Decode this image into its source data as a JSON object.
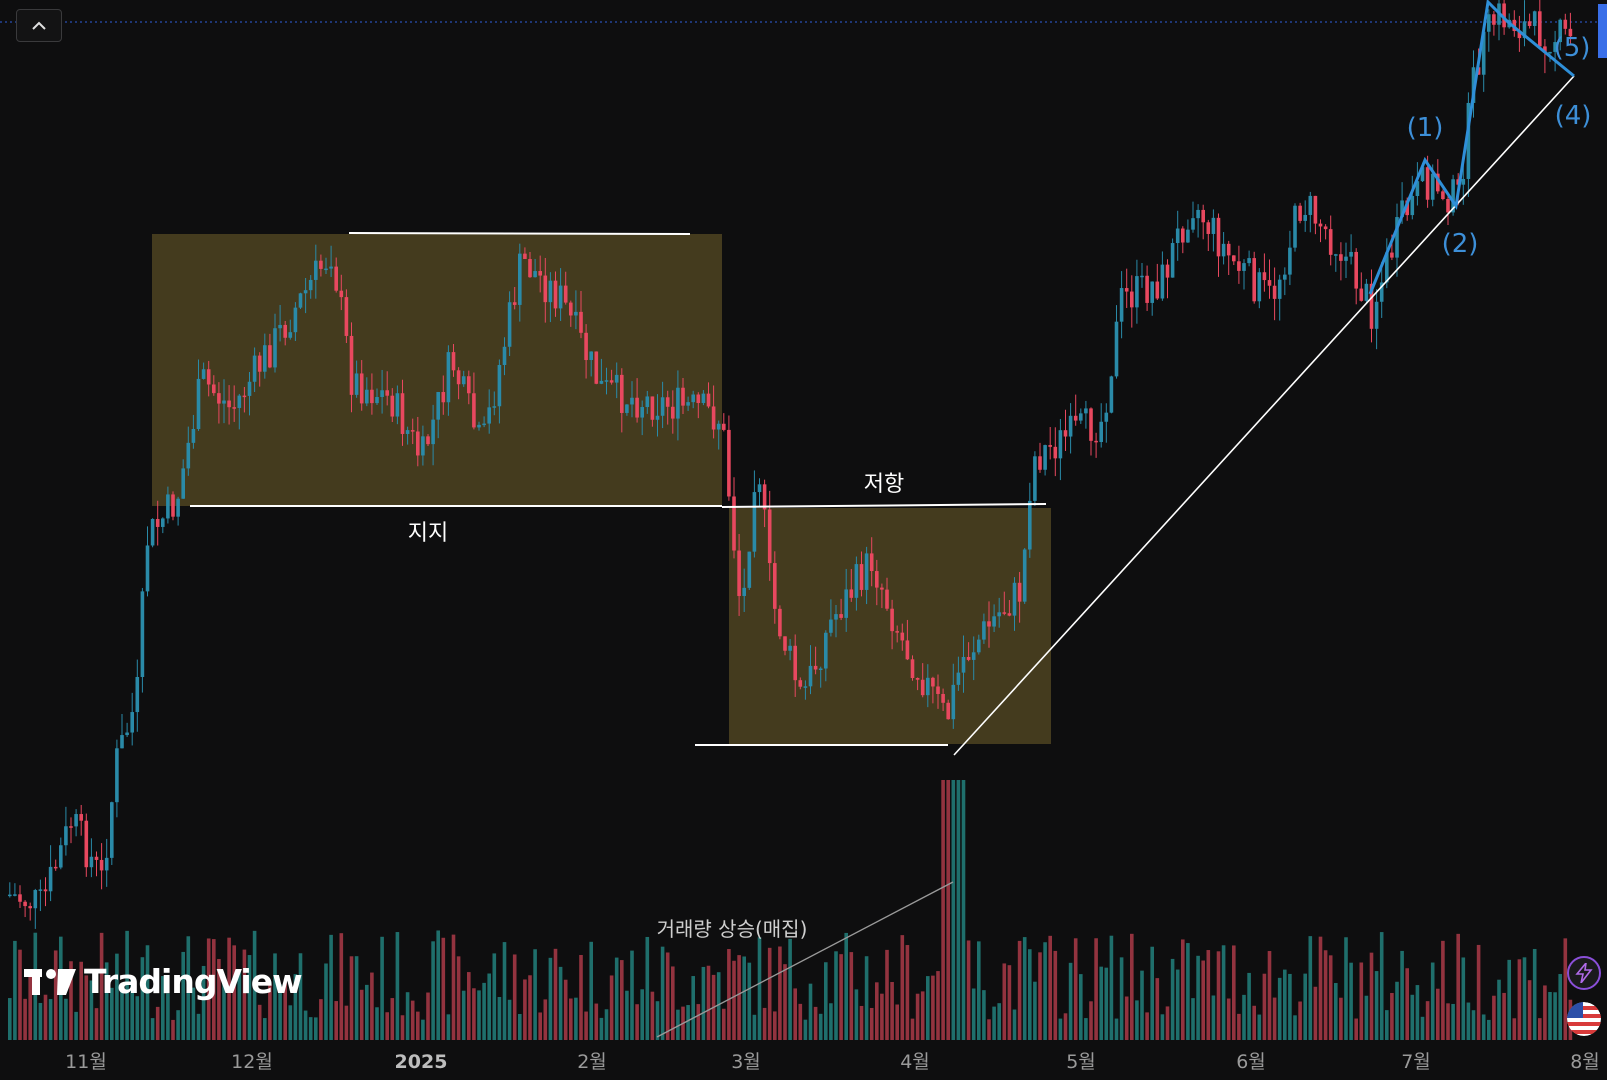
{
  "app": {
    "brand": "TradingView"
  },
  "colors": {
    "background": "#0e0e0f",
    "up_candle": "#2a8aa8",
    "down_candle": "#e8485f",
    "up_volume": "#1f6f6c",
    "down_volume": "#93333f",
    "zone_fill": "#4a4020",
    "annotation_line": "#ffffff",
    "wave_line": "#2f8fd8",
    "wave_label": "#3d8fd8",
    "price_marker": "#3a6fe8"
  },
  "chart_data": {
    "type": "candlestick",
    "x_axis_labels": [
      "11월",
      "12월",
      "2025",
      "2월",
      "3월",
      "4월",
      "5월",
      "6월",
      "7월",
      "8월"
    ],
    "annotations": {
      "support_label": "지지",
      "resistance_label": "저항",
      "volume_label": "거래량 상승(매집)",
      "wave_labels": [
        "(1)",
        "(2)",
        "(4)",
        "(5)"
      ]
    },
    "candles_note": "approximate daily candles read from price path",
    "grid": false,
    "volume_pane": true
  },
  "toolbar": {
    "collapse_icon": "chevron-up-icon"
  },
  "side_icons": [
    "lightning-icon",
    "us-flag-icon"
  ]
}
